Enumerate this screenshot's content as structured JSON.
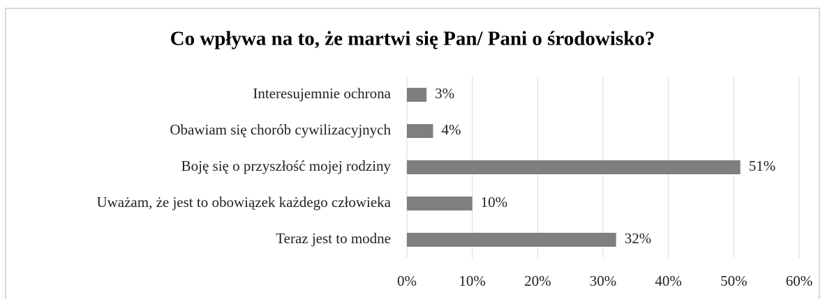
{
  "chart_data": {
    "type": "bar",
    "orientation": "horizontal",
    "title": "Co wpływa na to, że martwi się Pan/ Pani o środowisko?",
    "categories": [
      "Interesujemnie ochrona",
      "Obawiam się chorób cywilizacyjnych",
      "Boję się o przyszłość mojej rodziny",
      "Uważam, że jest to obowiązek każdego człowieka",
      "Teraz jest to modne"
    ],
    "values": [
      3,
      4,
      51,
      10,
      32
    ],
    "value_labels": [
      "3%",
      "4%",
      "51%",
      "10%",
      "32%"
    ],
    "color": "#7f7f7f",
    "xlim": [
      0,
      60
    ],
    "xticks": [
      {
        "value": 0,
        "label": "0%"
      },
      {
        "value": 10,
        "label": "10%"
      },
      {
        "value": 20,
        "label": "20%"
      },
      {
        "value": 30,
        "label": "30%"
      },
      {
        "value": 40,
        "label": "40%"
      },
      {
        "value": 50,
        "label": "50%"
      },
      {
        "value": 60,
        "label": "60%"
      }
    ],
    "grid": true
  }
}
